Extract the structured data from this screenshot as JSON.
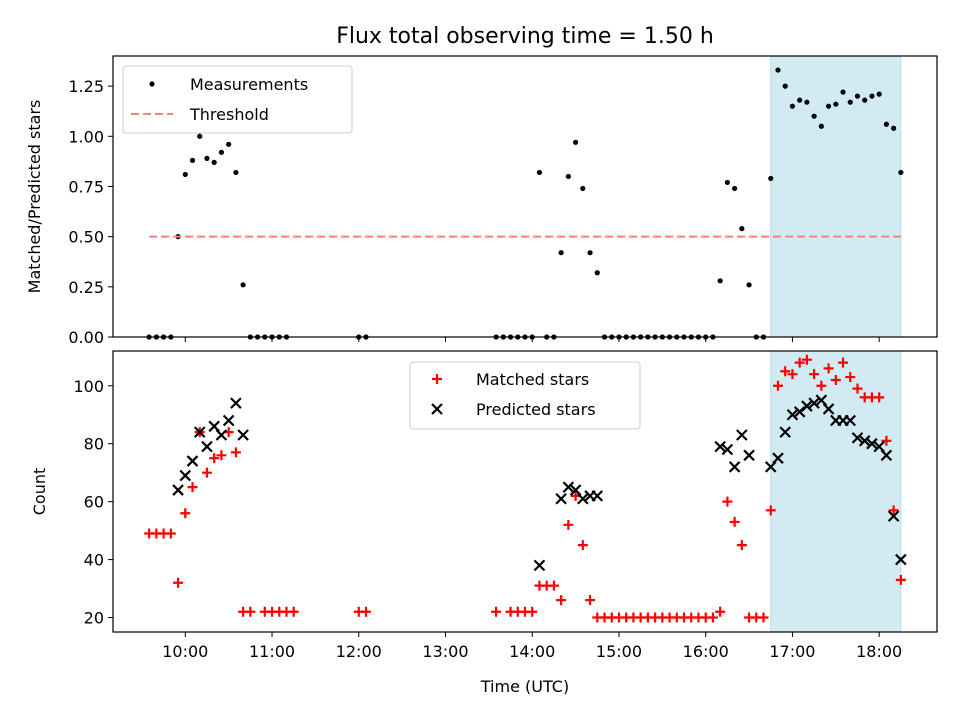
{
  "title": "Flux total observing time = 1.50 h",
  "chart_data": [
    {
      "type": "scatter",
      "ylabel": "Matched/Predicted stars",
      "ylim": [
        0,
        1.4
      ],
      "yticks": [
        0.0,
        0.25,
        0.5,
        0.75,
        1.0,
        1.25
      ],
      "ytick_labels": [
        "0.00",
        "0.25",
        "0.50",
        "0.75",
        "1.00",
        "1.25"
      ],
      "xlim": [
        "09:10",
        "18:40"
      ],
      "shaded_region": {
        "x": [
          "16:45",
          "18:15"
        ],
        "color": "#add8e6"
      },
      "legend": {
        "position": "upper-left",
        "entries": [
          {
            "label": "Measurements",
            "marker": "dot",
            "color": "#000000"
          },
          {
            "label": "Threshold",
            "marker": "dashed-line",
            "color": "#ff7f7f"
          }
        ]
      },
      "series": [
        {
          "name": "Measurements",
          "color": "#000000",
          "points": [
            [
              "09:35",
              0
            ],
            [
              "09:40",
              0
            ],
            [
              "09:45",
              0
            ],
            [
              "09:50",
              0
            ],
            [
              "09:55",
              0.5
            ],
            [
              "10:00",
              0.81
            ],
            [
              "10:05",
              0.88
            ],
            [
              "10:10",
              1.0
            ],
            [
              "10:15",
              0.89
            ],
            [
              "10:20",
              0.87
            ],
            [
              "10:25",
              0.92
            ],
            [
              "10:30",
              0.96
            ],
            [
              "10:35",
              0.82
            ],
            [
              "10:40",
              0.26
            ],
            [
              "10:45",
              0
            ],
            [
              "10:50",
              0
            ],
            [
              "10:55",
              0
            ],
            [
              "11:00",
              0
            ],
            [
              "11:05",
              0
            ],
            [
              "11:10",
              0
            ],
            [
              "12:00",
              0
            ],
            [
              "12:05",
              0
            ],
            [
              "13:35",
              0
            ],
            [
              "13:40",
              0
            ],
            [
              "13:45",
              0
            ],
            [
              "13:50",
              0
            ],
            [
              "13:55",
              0
            ],
            [
              "14:00",
              0
            ],
            [
              "14:05",
              0.82
            ],
            [
              "14:10",
              0
            ],
            [
              "14:15",
              0
            ],
            [
              "14:20",
              0.42
            ],
            [
              "14:25",
              0.8
            ],
            [
              "14:30",
              0.97
            ],
            [
              "14:35",
              0.74
            ],
            [
              "14:40",
              0.42
            ],
            [
              "14:45",
              0.32
            ],
            [
              "14:50",
              0
            ],
            [
              "14:55",
              0
            ],
            [
              "15:00",
              0
            ],
            [
              "15:05",
              0
            ],
            [
              "15:10",
              0
            ],
            [
              "15:15",
              0
            ],
            [
              "15:20",
              0
            ],
            [
              "15:25",
              0
            ],
            [
              "15:30",
              0
            ],
            [
              "15:35",
              0
            ],
            [
              "15:40",
              0
            ],
            [
              "15:45",
              0
            ],
            [
              "15:50",
              0
            ],
            [
              "15:55",
              0
            ],
            [
              "16:00",
              0
            ],
            [
              "16:05",
              0
            ],
            [
              "16:10",
              0.28
            ],
            [
              "16:15",
              0.77
            ],
            [
              "16:20",
              0.74
            ],
            [
              "16:25",
              0.54
            ],
            [
              "16:30",
              0.26
            ],
            [
              "16:35",
              0
            ],
            [
              "16:40",
              0
            ],
            [
              "16:45",
              0.79
            ],
            [
              "16:50",
              1.33
            ],
            [
              "16:55",
              1.25
            ],
            [
              "17:00",
              1.15
            ],
            [
              "17:05",
              1.18
            ],
            [
              "17:10",
              1.17
            ],
            [
              "17:15",
              1.1
            ],
            [
              "17:20",
              1.05
            ],
            [
              "17:25",
              1.15
            ],
            [
              "17:30",
              1.16
            ],
            [
              "17:35",
              1.22
            ],
            [
              "17:40",
              1.17
            ],
            [
              "17:45",
              1.2
            ],
            [
              "17:50",
              1.18
            ],
            [
              "17:55",
              1.2
            ],
            [
              "18:00",
              1.21
            ],
            [
              "18:05",
              1.06
            ],
            [
              "18:10",
              1.04
            ],
            [
              "18:15",
              0.82
            ]
          ]
        },
        {
          "name": "Threshold",
          "color": "#ff7f7f",
          "dashed": true,
          "points": [
            [
              "09:35",
              0.5
            ],
            [
              "18:15",
              0.5
            ]
          ]
        }
      ]
    },
    {
      "type": "scatter",
      "ylabel": "Count",
      "xlabel": "Time (UTC)",
      "ylim": [
        15,
        112
      ],
      "yticks": [
        20,
        40,
        60,
        80,
        100
      ],
      "ytick_labels": [
        "20",
        "40",
        "60",
        "80",
        "100"
      ],
      "xlim": [
        "09:10",
        "18:40"
      ],
      "xticks": [
        "10:00",
        "11:00",
        "12:00",
        "13:00",
        "14:00",
        "15:00",
        "16:00",
        "17:00",
        "18:00"
      ],
      "shaded_region": {
        "x": [
          "16:45",
          "18:15"
        ],
        "color": "#add8e6"
      },
      "legend": {
        "position": "upper-center",
        "entries": [
          {
            "label": "Matched stars",
            "marker": "plus",
            "color": "#ff0000"
          },
          {
            "label": "Predicted stars",
            "marker": "x",
            "color": "#000000"
          }
        ]
      },
      "series": [
        {
          "name": "Matched stars",
          "color": "#ff0000",
          "marker": "plus",
          "points": [
            [
              "09:35",
              49
            ],
            [
              "09:40",
              49
            ],
            [
              "09:45",
              49
            ],
            [
              "09:50",
              49
            ],
            [
              "09:55",
              32
            ],
            [
              "10:00",
              56
            ],
            [
              "10:05",
              65
            ],
            [
              "10:10",
              84
            ],
            [
              "10:15",
              70
            ],
            [
              "10:20",
              75
            ],
            [
              "10:25",
              76
            ],
            [
              "10:30",
              84
            ],
            [
              "10:35",
              77
            ],
            [
              "10:40",
              22
            ],
            [
              "10:45",
              22
            ],
            [
              "10:55",
              22
            ],
            [
              "11:00",
              22
            ],
            [
              "11:05",
              22
            ],
            [
              "11:10",
              22
            ],
            [
              "11:15",
              22
            ],
            [
              "12:00",
              22
            ],
            [
              "12:05",
              22
            ],
            [
              "13:35",
              22
            ],
            [
              "13:45",
              22
            ],
            [
              "13:50",
              22
            ],
            [
              "13:55",
              22
            ],
            [
              "14:00",
              22
            ],
            [
              "14:05",
              31
            ],
            [
              "14:10",
              31
            ],
            [
              "14:15",
              31
            ],
            [
              "14:20",
              26
            ],
            [
              "14:25",
              52
            ],
            [
              "14:30",
              62
            ],
            [
              "14:35",
              45
            ],
            [
              "14:40",
              26
            ],
            [
              "14:45",
              20
            ],
            [
              "14:50",
              20
            ],
            [
              "14:55",
              20
            ],
            [
              "15:00",
              20
            ],
            [
              "15:05",
              20
            ],
            [
              "15:10",
              20
            ],
            [
              "15:15",
              20
            ],
            [
              "15:20",
              20
            ],
            [
              "15:25",
              20
            ],
            [
              "15:30",
              20
            ],
            [
              "15:35",
              20
            ],
            [
              "15:40",
              20
            ],
            [
              "15:45",
              20
            ],
            [
              "15:50",
              20
            ],
            [
              "15:55",
              20
            ],
            [
              "16:00",
              20
            ],
            [
              "16:05",
              20
            ],
            [
              "16:10",
              22
            ],
            [
              "16:15",
              60
            ],
            [
              "16:20",
              53
            ],
            [
              "16:25",
              45
            ],
            [
              "16:30",
              20
            ],
            [
              "16:35",
              20
            ],
            [
              "16:40",
              20
            ],
            [
              "16:45",
              57
            ],
            [
              "16:50",
              100
            ],
            [
              "16:55",
              105
            ],
            [
              "17:00",
              104
            ],
            [
              "17:05",
              108
            ],
            [
              "17:10",
              109
            ],
            [
              "17:15",
              104
            ],
            [
              "17:20",
              100
            ],
            [
              "17:25",
              106
            ],
            [
              "17:30",
              102
            ],
            [
              "17:35",
              108
            ],
            [
              "17:40",
              103
            ],
            [
              "17:45",
              99
            ],
            [
              "17:50",
              96
            ],
            [
              "17:55",
              96
            ],
            [
              "18:00",
              96
            ],
            [
              "18:05",
              81
            ],
            [
              "18:10",
              57
            ],
            [
              "18:15",
              33
            ]
          ]
        },
        {
          "name": "Predicted stars",
          "color": "#000000",
          "marker": "x",
          "points": [
            [
              "09:55",
              64
            ],
            [
              "10:00",
              69
            ],
            [
              "10:05",
              74
            ],
            [
              "10:10",
              84
            ],
            [
              "10:15",
              79
            ],
            [
              "10:20",
              86
            ],
            [
              "10:25",
              83
            ],
            [
              "10:30",
              88
            ],
            [
              "10:35",
              94
            ],
            [
              "10:40",
              83
            ],
            [
              "14:05",
              38
            ],
            [
              "14:20",
              61
            ],
            [
              "14:25",
              65
            ],
            [
              "14:30",
              64
            ],
            [
              "14:35",
              61
            ],
            [
              "14:40",
              62
            ],
            [
              "14:45",
              62
            ],
            [
              "16:10",
              79
            ],
            [
              "16:15",
              78
            ],
            [
              "16:20",
              72
            ],
            [
              "16:25",
              83
            ],
            [
              "16:30",
              76
            ],
            [
              "16:45",
              72
            ],
            [
              "16:50",
              75
            ],
            [
              "16:55",
              84
            ],
            [
              "17:00",
              90
            ],
            [
              "17:05",
              91
            ],
            [
              "17:10",
              93
            ],
            [
              "17:15",
              94
            ],
            [
              "17:20",
              95
            ],
            [
              "17:25",
              92
            ],
            [
              "17:30",
              88
            ],
            [
              "17:35",
              88
            ],
            [
              "17:40",
              88
            ],
            [
              "17:45",
              82
            ],
            [
              "17:50",
              81
            ],
            [
              "17:55",
              80
            ],
            [
              "18:00",
              79
            ],
            [
              "18:05",
              76
            ],
            [
              "18:10",
              55
            ],
            [
              "18:15",
              40
            ]
          ]
        }
      ]
    }
  ]
}
